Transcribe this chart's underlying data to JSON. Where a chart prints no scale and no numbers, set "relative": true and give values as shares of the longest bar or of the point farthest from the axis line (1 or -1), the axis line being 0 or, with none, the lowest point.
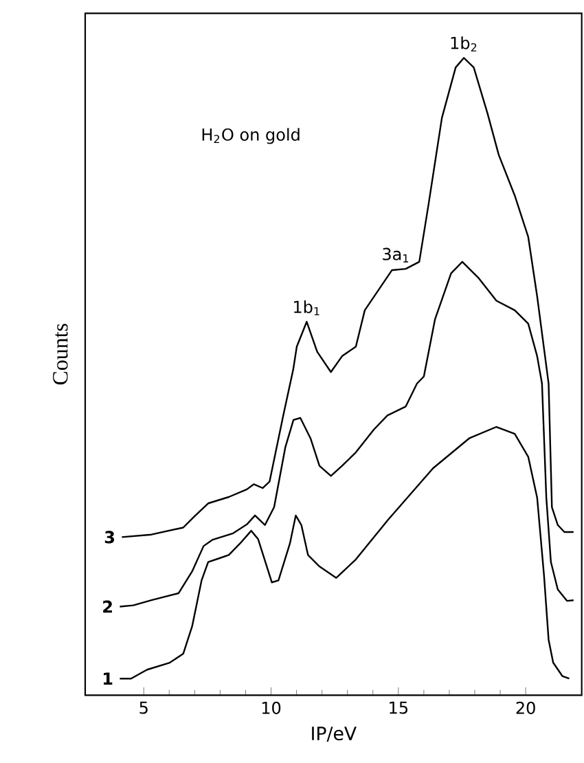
{
  "chart_data": {
    "type": "line",
    "relative": true,
    "xlabel": "IP/eV",
    "ylabel": "Counts",
    "xlim": [
      2.7,
      22.2
    ],
    "xticks": [
      5,
      10,
      15,
      20
    ],
    "legend": false,
    "marker": "none",
    "line_style": "solid",
    "annotations": [
      "H$_{2}$O on gold",
      {
        "text": "1b$_{1}$",
        "x": 11.4,
        "y": 0.586
      },
      {
        "text": "3a$_{1}$",
        "x": 14.9,
        "y": 0.669
      },
      {
        "text": "1b$_{2}$",
        "x": 17.57,
        "y": 1.0
      }
    ],
    "series": [
      {
        "name": "1",
        "color": "#000000",
        "x": [
          4.06,
          4.5,
          5.13,
          6.02,
          6.55,
          6.9,
          7.27,
          7.53,
          7.98,
          8.34,
          8.78,
          9.22,
          9.49,
          10.03,
          10.29,
          10.74,
          10.97,
          11.19,
          11.45,
          11.9,
          12.56,
          13.33,
          14.57,
          16.36,
          17.78,
          18.85,
          19.57,
          20.1,
          20.45,
          20.72,
          20.9,
          21.08,
          21.44,
          21.71
        ],
        "values": [
          0.026,
          0.026,
          0.04,
          0.051,
          0.065,
          0.108,
          0.18,
          0.209,
          0.215,
          0.22,
          0.238,
          0.258,
          0.245,
          0.177,
          0.18,
          0.238,
          0.282,
          0.267,
          0.22,
          0.202,
          0.184,
          0.213,
          0.274,
          0.356,
          0.403,
          0.421,
          0.41,
          0.374,
          0.31,
          0.188,
          0.087,
          0.051,
          0.03,
          0.026
        ]
      },
      {
        "name": "2",
        "color": "#000000",
        "x": [
          4.06,
          4.59,
          5.3,
          6.37,
          6.91,
          7.35,
          7.71,
          8.51,
          9.05,
          9.37,
          9.76,
          10.12,
          10.56,
          10.88,
          11.15,
          11.55,
          11.9,
          12.35,
          12.79,
          13.33,
          14.04,
          14.57,
          15.29,
          15.73,
          16.0,
          16.44,
          17.07,
          17.51,
          18.14,
          18.85,
          19.57,
          20.1,
          20.45,
          20.64,
          20.81,
          20.99,
          21.26,
          21.62,
          21.88
        ],
        "values": [
          0.139,
          0.141,
          0.149,
          0.16,
          0.195,
          0.234,
          0.244,
          0.254,
          0.268,
          0.282,
          0.267,
          0.295,
          0.389,
          0.432,
          0.435,
          0.403,
          0.36,
          0.344,
          0.36,
          0.381,
          0.417,
          0.439,
          0.453,
          0.489,
          0.5,
          0.59,
          0.662,
          0.68,
          0.655,
          0.619,
          0.604,
          0.583,
          0.532,
          0.489,
          0.31,
          0.209,
          0.166,
          0.148,
          0.149
        ]
      },
      {
        "name": "3",
        "color": "#000000",
        "x": [
          4.14,
          5.3,
          6.55,
          7.0,
          7.53,
          8.34,
          9.05,
          9.32,
          9.67,
          9.94,
          10.48,
          10.87,
          11.01,
          11.4,
          11.81,
          12.35,
          12.79,
          13.33,
          13.68,
          14.75,
          15.29,
          15.82,
          16.18,
          16.71,
          17.25,
          17.57,
          17.96,
          18.5,
          18.94,
          19.57,
          20.1,
          20.45,
          20.9,
          21.03,
          21.26,
          21.52,
          21.88
        ],
        "values": [
          0.248,
          0.252,
          0.263,
          0.281,
          0.301,
          0.311,
          0.323,
          0.331,
          0.325,
          0.335,
          0.439,
          0.511,
          0.547,
          0.586,
          0.539,
          0.507,
          0.532,
          0.547,
          0.604,
          0.667,
          0.669,
          0.68,
          0.769,
          0.906,
          0.985,
          1.0,
          0.985,
          0.913,
          0.848,
          0.784,
          0.719,
          0.626,
          0.489,
          0.295,
          0.267,
          0.256,
          0.256
        ]
      }
    ]
  }
}
